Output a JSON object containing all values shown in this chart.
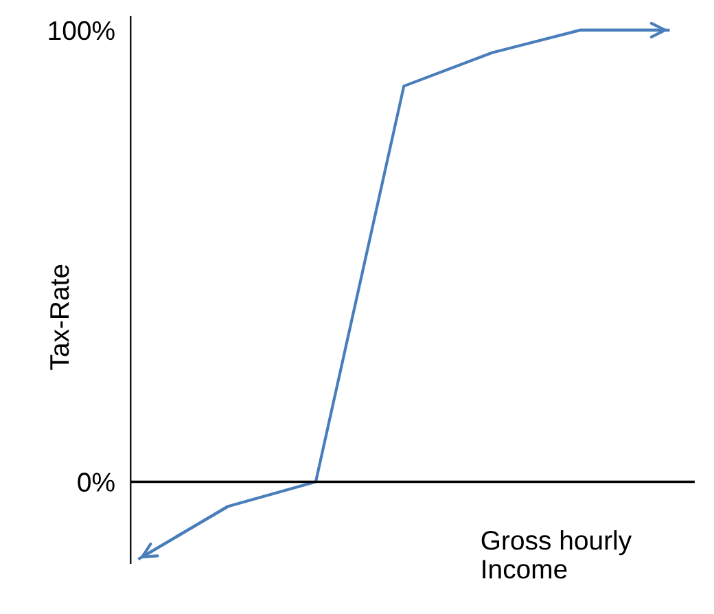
{
  "chart_data": {
    "type": "line",
    "xlabel": "Gross hourly\nIncome",
    "ylabel": "Tax-Rate",
    "categories": [
      null,
      null,
      null,
      null,
      null,
      null,
      null
    ],
    "series": [
      {
        "color": "#4a7ebb",
        "values": [
          -17,
          -5.5,
          0,
          87.6,
          95,
          100,
          100
        ]
      }
    ],
    "ylim": [
      -18,
      103
    ],
    "yticks": [
      {
        "value": 0,
        "label": "0%"
      },
      {
        "value": 100,
        "label": "100%"
      }
    ],
    "ref_lines": [
      {
        "axis": "y",
        "value": 0,
        "color": "#000000"
      }
    ],
    "marker": "none",
    "line_style": "solid"
  }
}
